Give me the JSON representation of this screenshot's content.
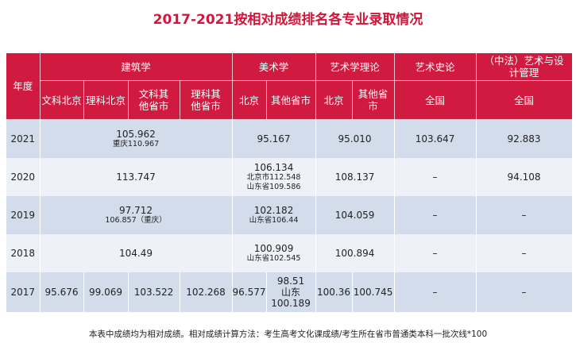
{
  "title": "2017-2021按相对成绩排名各专业录取情况",
  "header": {
    "year": "年度",
    "groups": {
      "architecture": "建筑学",
      "fine_arts": "美术学",
      "art_theory": "艺术学理论",
      "art_history": "艺术史论",
      "design_mgmt": "（中法）艺术与设计管理"
    },
    "sub": {
      "arch_lib_bj": "文科北京",
      "arch_sci_bj": "理科北京",
      "arch_lib_other": "文科其他省市",
      "arch_sci_other": "理科其他省市",
      "fa_bj": "北京",
      "fa_other": "其他省市",
      "at_bj": "北京",
      "at_other": "其他省市",
      "ah_national": "全国",
      "dm_national": "全国"
    }
  },
  "rows": {
    "r2021": {
      "year": "2021",
      "arch_main": "105.962",
      "arch_sub": "重庆110.967",
      "fine_arts": "95.167",
      "art_theory": "95.010",
      "art_history": "103.647",
      "design_mgmt": "92.883"
    },
    "r2020": {
      "year": "2020",
      "arch_main": "113.747",
      "fa_main": "106.134",
      "fa_sub1": "北京市112.548",
      "fa_sub2": "山东省109.586",
      "art_theory": "108.137",
      "art_history": "–",
      "design_mgmt": "94.108"
    },
    "r2019": {
      "year": "2019",
      "arch_main": "97.712",
      "arch_sub": "106.857（重庆）",
      "fa_main": "102.182",
      "fa_sub": "山东省106.44",
      "art_theory": "104.059",
      "art_history": "–",
      "design_mgmt": "–"
    },
    "r2018": {
      "year": "2018",
      "arch_main": "104.49",
      "fa_main": "100.909",
      "fa_sub": "山东省102.545",
      "art_theory": "100.894",
      "art_history": "–",
      "design_mgmt": "–"
    },
    "r2017": {
      "year": "2017",
      "arch_lib_bj": "95.676",
      "arch_sci_bj": "99.069",
      "arch_lib_other": "103.522",
      "arch_sci_other": "102.268",
      "fa_bj": "96.577",
      "fa_other_line1": "98.51",
      "fa_other_line2": "山东",
      "fa_other_line3": "100.189",
      "at_bj": "100.36",
      "at_other": "100.745",
      "art_history": "–",
      "design_mgmt": "–"
    }
  },
  "footnote": "本表中成绩均为相对成绩。相对成绩计算方法：考生高考文化课成绩/考生所在省市普通类本科一批次线*100"
}
